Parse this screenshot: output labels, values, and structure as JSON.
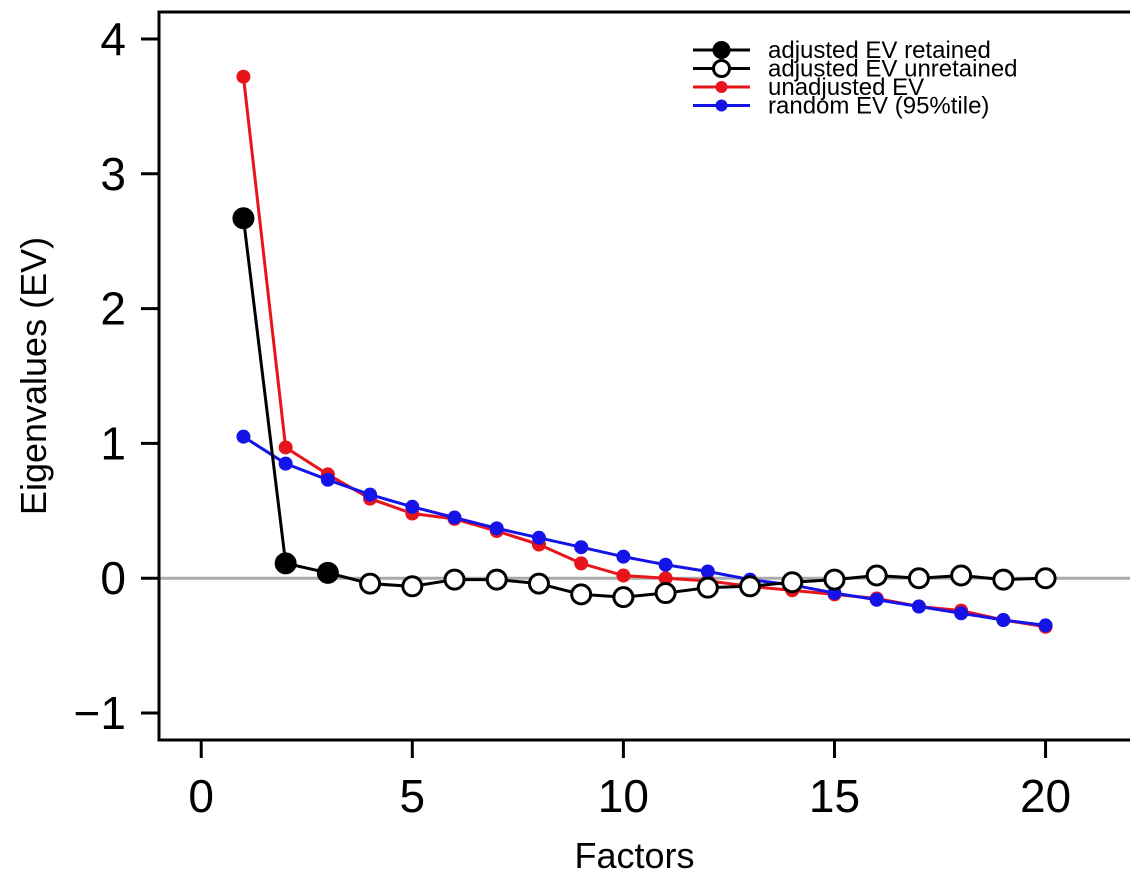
{
  "chart_data": {
    "type": "line",
    "xlabel": "Factors",
    "ylabel": "Eigenvalues (EV)",
    "xlim": [
      -1,
      22
    ],
    "ylim": [
      -1.2,
      4.2
    ],
    "xticks": [
      0,
      5,
      10,
      15,
      20
    ],
    "yticks": [
      -1,
      0,
      1,
      2,
      3,
      4
    ],
    "xtick_labels": [
      "0",
      "5",
      "10",
      "15",
      "20"
    ],
    "ytick_labels": [
      "−1",
      "0",
      "1",
      "2",
      "3",
      "4"
    ],
    "reference_line_y": 0,
    "reference_line_color": "#aaaaaa",
    "grid": false,
    "legend_position": "top-right",
    "x": [
      1,
      2,
      3,
      4,
      5,
      6,
      7,
      8,
      9,
      10,
      11,
      12,
      13,
      14,
      15,
      16,
      17,
      18,
      19,
      20
    ],
    "series": [
      {
        "name": "unadjusted EV",
        "color": "#e8141b",
        "marker": "filled-small",
        "values": [
          3.72,
          0.97,
          0.77,
          0.59,
          0.48,
          0.44,
          0.35,
          0.25,
          0.11,
          0.02,
          0.0,
          -0.02,
          -0.06,
          -0.09,
          -0.12,
          -0.15,
          -0.21,
          -0.24,
          -0.31,
          -0.36
        ]
      },
      {
        "name": "random EV (95%tile)",
        "color": "#1414e8",
        "marker": "filled-small",
        "values": [
          1.05,
          0.85,
          0.73,
          0.62,
          0.53,
          0.45,
          0.37,
          0.3,
          0.23,
          0.16,
          0.1,
          0.05,
          -0.01,
          -0.05,
          -0.11,
          -0.16,
          -0.21,
          -0.26,
          -0.31,
          -0.35
        ]
      },
      {
        "name": "adjusted EV",
        "color": "#000000",
        "marker": "circle-large",
        "values": [
          2.67,
          0.11,
          0.04,
          -0.04,
          -0.06,
          -0.01,
          -0.01,
          -0.04,
          -0.12,
          -0.14,
          -0.11,
          -0.07,
          -0.06,
          -0.03,
          -0.01,
          0.02,
          0.0,
          0.02,
          -0.01,
          0.0
        ],
        "retained_count": 3
      }
    ],
    "legend": [
      {
        "label": "adjusted EV retained",
        "color": "#000000",
        "marker": "filled-large"
      },
      {
        "label": "adjusted EV unretained",
        "color": "#000000",
        "marker": "open-large"
      },
      {
        "label": "unadjusted EV",
        "color": "#e8141b",
        "marker": "filled-small"
      },
      {
        "label": "random EV (95%tile)",
        "color": "#1414e8",
        "marker": "filled-small"
      }
    ]
  }
}
